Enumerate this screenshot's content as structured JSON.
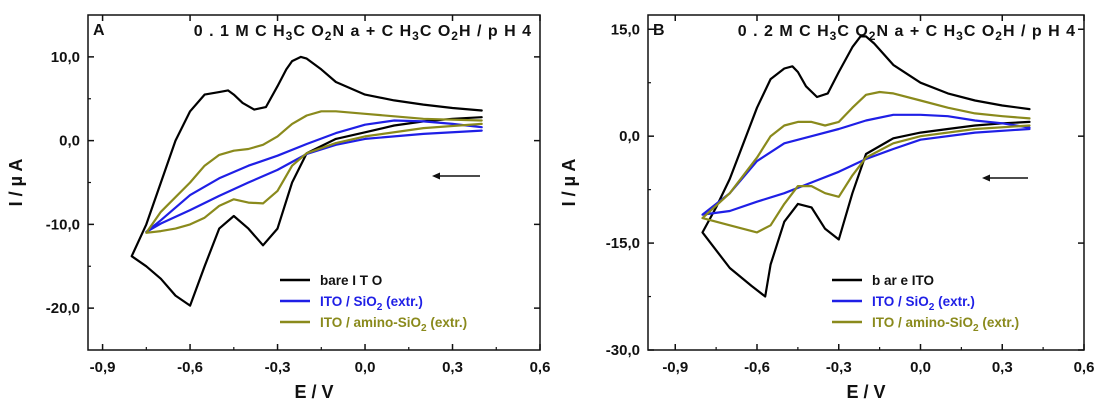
{
  "chart_data": [
    {
      "type": "line",
      "panel_label": "A",
      "title": "0 . 1 M C H3C O2N a + C H3C O2H / p H 4",
      "title_parts": [
        {
          "t": "0 . 1 M C H",
          "sub": false
        },
        {
          "t": "3",
          "sub": true
        },
        {
          "t": "C O",
          "sub": false
        },
        {
          "t": "2",
          "sub": true
        },
        {
          "t": "N a + C H",
          "sub": false
        },
        {
          "t": "3",
          "sub": true
        },
        {
          "t": "C O",
          "sub": false
        },
        {
          "t": "2",
          "sub": true
        },
        {
          "t": "H / p H 4",
          "sub": false
        }
      ],
      "xlabel": "E / V",
      "ylabel": "I / µ A",
      "xlim": [
        -0.95,
        0.6
      ],
      "ylim": [
        -25,
        15
      ],
      "xticks": [
        -0.9,
        -0.6,
        -0.3,
        0.0,
        0.3,
        0.6
      ],
      "xtick_labels": [
        "-0,9",
        "-0,6",
        "-0,3",
        "0,0",
        "0,3",
        "0,6"
      ],
      "yticks": [
        -20,
        -10,
        0,
        10
      ],
      "ytick_labels": [
        "-20,0",
        "-10,0",
        "0,0",
        "10,0"
      ],
      "scan_direction": "arrow pointing left",
      "legend_position": "bottom-right",
      "series": [
        {
          "name": "bare I T O",
          "color": "#000000",
          "name_parts": [
            {
              "t": "bare I T O",
              "sub": false
            }
          ],
          "x": [
            0.4,
            0.3,
            0.2,
            0.1,
            0.0,
            -0.1,
            -0.2,
            -0.25,
            -0.3,
            -0.35,
            -0.4,
            -0.45,
            -0.5,
            -0.55,
            -0.6,
            -0.65,
            -0.7,
            -0.75,
            -0.8,
            -0.75,
            -0.7,
            -0.65,
            -0.6,
            -0.55,
            -0.5,
            -0.47,
            -0.45,
            -0.42,
            -0.38,
            -0.34,
            -0.3,
            -0.27,
            -0.25,
            -0.22,
            -0.2,
            -0.15,
            -0.1,
            0.0,
            0.1,
            0.2,
            0.3,
            0.4
          ],
          "y": [
            2.8,
            2.6,
            2.3,
            1.8,
            1.0,
            0.2,
            -1.5,
            -5.0,
            -10.5,
            -12.5,
            -10.5,
            -9.0,
            -10.5,
            -15.0,
            -19.7,
            -18.5,
            -16.5,
            -15.0,
            -13.8,
            -10.0,
            -5.0,
            0.0,
            3.5,
            5.5,
            5.8,
            6.0,
            5.5,
            4.5,
            3.7,
            4.0,
            6.5,
            8.5,
            9.5,
            10.0,
            9.8,
            8.5,
            7.0,
            5.5,
            4.8,
            4.3,
            3.9,
            3.6
          ]
        },
        {
          "name": "ITO / SiO2 (extr.)",
          "color": "#1f1fe6",
          "name_parts": [
            {
              "t": "ITO / SiO",
              "sub": false
            },
            {
              "t": "2",
              "sub": true
            },
            {
              "t": " (extr.)",
              "sub": false
            }
          ],
          "x": [
            0.4,
            0.2,
            0.0,
            -0.1,
            -0.2,
            -0.3,
            -0.4,
            -0.5,
            -0.6,
            -0.7,
            -0.75,
            -0.7,
            -0.6,
            -0.5,
            -0.4,
            -0.3,
            -0.2,
            -0.1,
            0.0,
            0.1,
            0.2,
            0.3,
            0.4
          ],
          "y": [
            1.2,
            0.8,
            0.2,
            -0.5,
            -1.6,
            -3.5,
            -5.0,
            -6.6,
            -8.3,
            -9.9,
            -10.9,
            -9.5,
            -6.5,
            -4.5,
            -3.0,
            -1.8,
            -0.4,
            0.9,
            1.9,
            2.4,
            2.3,
            2.0,
            1.6
          ]
        },
        {
          "name": "ITO / amino-SiO2 (extr.)",
          "color": "#8a8a1c",
          "name_parts": [
            {
              "t": "ITO / amino-SiO",
              "sub": false
            },
            {
              "t": "2",
              "sub": true
            },
            {
              "t": " (extr.)",
              "sub": false
            }
          ],
          "x": [
            0.4,
            0.2,
            0.0,
            -0.1,
            -0.2,
            -0.25,
            -0.3,
            -0.35,
            -0.4,
            -0.45,
            -0.5,
            -0.55,
            -0.6,
            -0.65,
            -0.7,
            -0.75,
            -0.7,
            -0.6,
            -0.55,
            -0.5,
            -0.45,
            -0.4,
            -0.35,
            -0.3,
            -0.25,
            -0.2,
            -0.15,
            -0.1,
            0.0,
            0.1,
            0.2,
            0.3,
            0.4
          ],
          "y": [
            2.0,
            1.5,
            0.5,
            -0.3,
            -1.5,
            -3.0,
            -6.0,
            -7.5,
            -7.4,
            -7.0,
            -7.8,
            -9.2,
            -10.0,
            -10.5,
            -10.8,
            -11.0,
            -8.5,
            -5.0,
            -3.0,
            -1.7,
            -1.2,
            -1.0,
            -0.5,
            0.5,
            2.0,
            3.0,
            3.5,
            3.5,
            3.2,
            2.9,
            2.6,
            2.5,
            2.4
          ]
        }
      ]
    },
    {
      "type": "line",
      "panel_label": "B",
      "title": "0 . 2 M C H3C O2N a + C H3C O2H / p H 4",
      "title_parts": [
        {
          "t": "0 . 2 M C H",
          "sub": false
        },
        {
          "t": "3",
          "sub": true
        },
        {
          "t": "C O",
          "sub": false
        },
        {
          "t": "2",
          "sub": true
        },
        {
          "t": "N a + C H",
          "sub": false
        },
        {
          "t": "3",
          "sub": true
        },
        {
          "t": "C O",
          "sub": false
        },
        {
          "t": "2",
          "sub": true
        },
        {
          "t": "H / p H 4",
          "sub": false
        }
      ],
      "xlabel": "E / V",
      "ylabel": "I / µ A",
      "xlim": [
        -1.0,
        0.6
      ],
      "ylim": [
        -30,
        17
      ],
      "xticks": [
        -0.9,
        -0.6,
        -0.3,
        0.0,
        0.3,
        0.6
      ],
      "xtick_labels": [
        "-0,9",
        "-0,6",
        "-0,3",
        "0,0",
        "0,3",
        "0,6"
      ],
      "yticks": [
        -30,
        -15,
        0,
        15
      ],
      "ytick_labels": [
        "-30,0",
        "-15,0",
        "0,0",
        "15,0"
      ],
      "scan_direction": "arrow pointing left",
      "legend_position": "bottom-right",
      "series": [
        {
          "name": "b ar e ITO",
          "color": "#000000",
          "name_parts": [
            {
              "t": "b ar e ITO",
              "sub": false
            }
          ],
          "x": [
            0.4,
            0.3,
            0.2,
            0.1,
            0.0,
            -0.1,
            -0.2,
            -0.25,
            -0.3,
            -0.35,
            -0.4,
            -0.45,
            -0.5,
            -0.55,
            -0.57,
            -0.62,
            -0.7,
            -0.75,
            -0.8,
            -0.75,
            -0.7,
            -0.65,
            -0.6,
            -0.55,
            -0.5,
            -0.47,
            -0.45,
            -0.42,
            -0.38,
            -0.34,
            -0.3,
            -0.25,
            -0.22,
            -0.2,
            -0.17,
            -0.1,
            0.0,
            0.1,
            0.2,
            0.3,
            0.4
          ],
          "y": [
            2.0,
            1.8,
            1.5,
            1.0,
            0.5,
            -0.3,
            -2.5,
            -8.0,
            -14.5,
            -13.0,
            -10.0,
            -9.5,
            -12.0,
            -18.0,
            -22.5,
            -21.0,
            -18.5,
            -16.0,
            -13.5,
            -10.0,
            -6.0,
            -1.0,
            4.0,
            8.0,
            9.5,
            9.8,
            9.0,
            7.0,
            5.5,
            6.0,
            9.0,
            12.5,
            14.0,
            14.0,
            13.0,
            10.0,
            7.5,
            6.0,
            5.0,
            4.3,
            3.8
          ]
        },
        {
          "name": "ITO / SiO2 (extr.)",
          "color": "#1f1fe6",
          "name_parts": [
            {
              "t": "ITO / SiO",
              "sub": false
            },
            {
              "t": "2",
              "sub": true
            },
            {
              "t": " (extr.)",
              "sub": false
            }
          ],
          "x": [
            0.4,
            0.2,
            0.0,
            -0.1,
            -0.2,
            -0.3,
            -0.4,
            -0.5,
            -0.6,
            -0.7,
            -0.8,
            -0.7,
            -0.6,
            -0.5,
            -0.4,
            -0.3,
            -0.2,
            -0.1,
            0.0,
            0.1,
            0.2,
            0.3,
            0.4
          ],
          "y": [
            1.0,
            0.5,
            -0.5,
            -1.8,
            -3.2,
            -5.0,
            -6.5,
            -8.0,
            -9.2,
            -10.5,
            -11.0,
            -8.0,
            -3.5,
            -1.0,
            0.0,
            1.0,
            2.2,
            3.0,
            3.0,
            2.8,
            2.2,
            1.8,
            1.2
          ]
        },
        {
          "name": "ITO / amino-SiO2 (extr.)",
          "color": "#8a8a1c",
          "name_parts": [
            {
              "t": "ITO / amino-SiO",
              "sub": false
            },
            {
              "t": "2",
              "sub": true
            },
            {
              "t": " (extr.)",
              "sub": false
            }
          ],
          "x": [
            0.4,
            0.2,
            0.0,
            -0.1,
            -0.2,
            -0.25,
            -0.3,
            -0.35,
            -0.4,
            -0.45,
            -0.5,
            -0.55,
            -0.6,
            -0.7,
            -0.8,
            -0.7,
            -0.6,
            -0.55,
            -0.5,
            -0.45,
            -0.4,
            -0.35,
            -0.3,
            -0.25,
            -0.2,
            -0.15,
            -0.1,
            0.0,
            0.1,
            0.2,
            0.3,
            0.4
          ],
          "y": [
            1.5,
            1.0,
            0.0,
            -1.0,
            -3.0,
            -5.5,
            -8.5,
            -8.0,
            -7.0,
            -7.0,
            -9.5,
            -12.5,
            -13.5,
            -12.5,
            -11.5,
            -8.0,
            -3.0,
            0.0,
            1.5,
            2.0,
            2.0,
            1.5,
            2.0,
            4.0,
            5.8,
            6.2,
            6.0,
            5.0,
            4.0,
            3.2,
            2.8,
            2.5
          ]
        }
      ]
    }
  ]
}
